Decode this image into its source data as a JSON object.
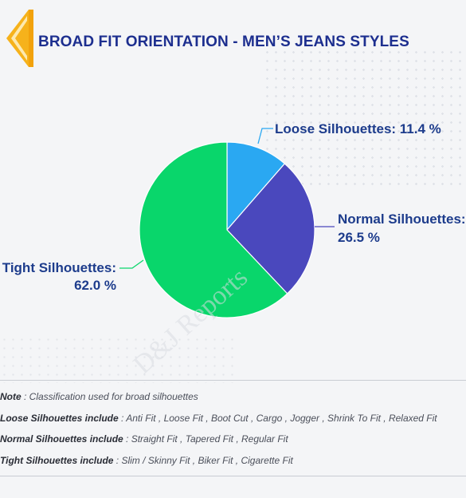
{
  "title": "BROAD FIT ORIENTATION - MEN’S JEANS STYLES",
  "watermark": "D&J Reports",
  "chart_data": {
    "type": "pie",
    "title": "BROAD FIT ORIENTATION - MEN’S JEANS STYLES",
    "slices": [
      {
        "name": "Loose Silhouettes",
        "value": 11.4,
        "label": "Loose Silhouettes: 11.4 %",
        "color": "#2aa8f2"
      },
      {
        "name": "Normal Silhouettes",
        "value": 26.5,
        "label_line1": "Normal Silhouettes:",
        "label_line2": "26.5 %",
        "color": "#4a48bd"
      },
      {
        "name": "Tight Silhouettes",
        "value": 62.0,
        "label_line1": "Tight Silhouettes:",
        "label_line2": "62.0 %",
        "color": "#09d66b"
      }
    ]
  },
  "notes": {
    "note_label": "Note",
    "note_text": " : Classification used for broad silhouettes",
    "loose_label": "Loose Silhouettes include",
    "loose_text": " : Anti Fit , Loose Fit , Boot Cut , Cargo , Jogger , Shrink To Fit , Relaxed Fit",
    "normal_label": "Normal Silhouettes include",
    "normal_text": " : Straight Fit , Tapered Fit , Regular Fit",
    "tight_label": "Tight Silhouettes include",
    "tight_text": " : Slim / Skinny Fit , Biker Fit , Cigarette Fit"
  }
}
